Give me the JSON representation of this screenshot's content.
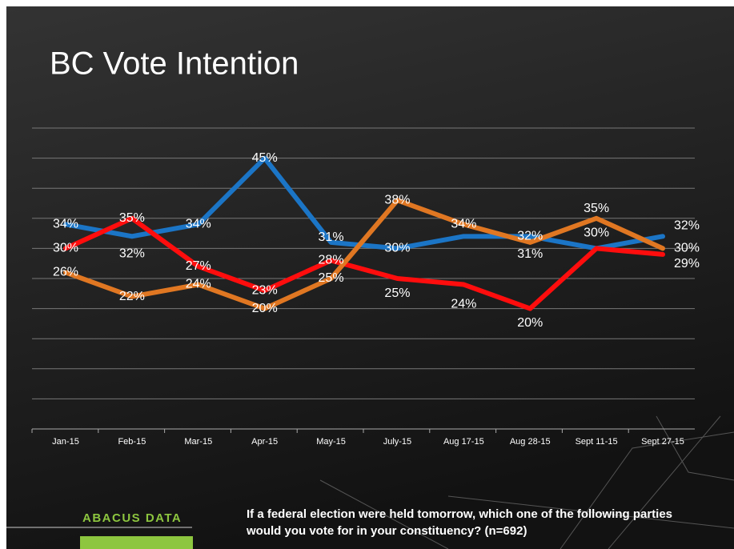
{
  "chart_data": {
    "type": "line",
    "title": "BC Vote Intention",
    "categories": [
      "Jan-15",
      "Feb-15",
      "Mar-15",
      "Apr-15",
      "May-15",
      "July-15",
      "Aug 17-15",
      "Aug 28-15",
      "Sept 11-15",
      "Sept 27-15"
    ],
    "series": [
      {
        "name": "Blue",
        "color": "#1b75c6",
        "values": [
          34,
          32,
          34,
          45,
          31,
          30,
          32,
          32,
          30,
          32
        ],
        "value_labels": [
          "34%",
          "32%",
          "34%",
          "45%",
          "31%",
          "30%",
          null,
          "32%",
          null,
          "32%"
        ]
      },
      {
        "name": "Red",
        "color": "#ff0d0d",
        "values": [
          30,
          35,
          27,
          23,
          28,
          25,
          24,
          20,
          30,
          29
        ],
        "value_labels": [
          "30%",
          "35%",
          "27%",
          "23%",
          "28%",
          "25%",
          "24%",
          "20%",
          "30%",
          "29%"
        ]
      },
      {
        "name": "Orange",
        "color": "#e07722",
        "values": [
          26,
          22,
          24,
          20,
          25,
          38,
          34,
          31,
          35,
          30
        ],
        "value_labels": [
          "26%",
          "22%",
          "24%",
          "20%",
          "25%",
          "38%",
          "34%",
          "31%",
          "35%",
          "30%"
        ]
      }
    ],
    "ylim": [
      0,
      50
    ],
    "yticks": [
      0,
      5,
      10,
      15,
      20,
      25,
      30,
      35,
      40,
      45,
      50
    ],
    "grid": true,
    "brand": "ABACUS DATA",
    "footnote": [
      "If a  federal election were held tomorrow, which one of the following parties",
      "would you vote for in your constituency?  (n=692)"
    ]
  }
}
